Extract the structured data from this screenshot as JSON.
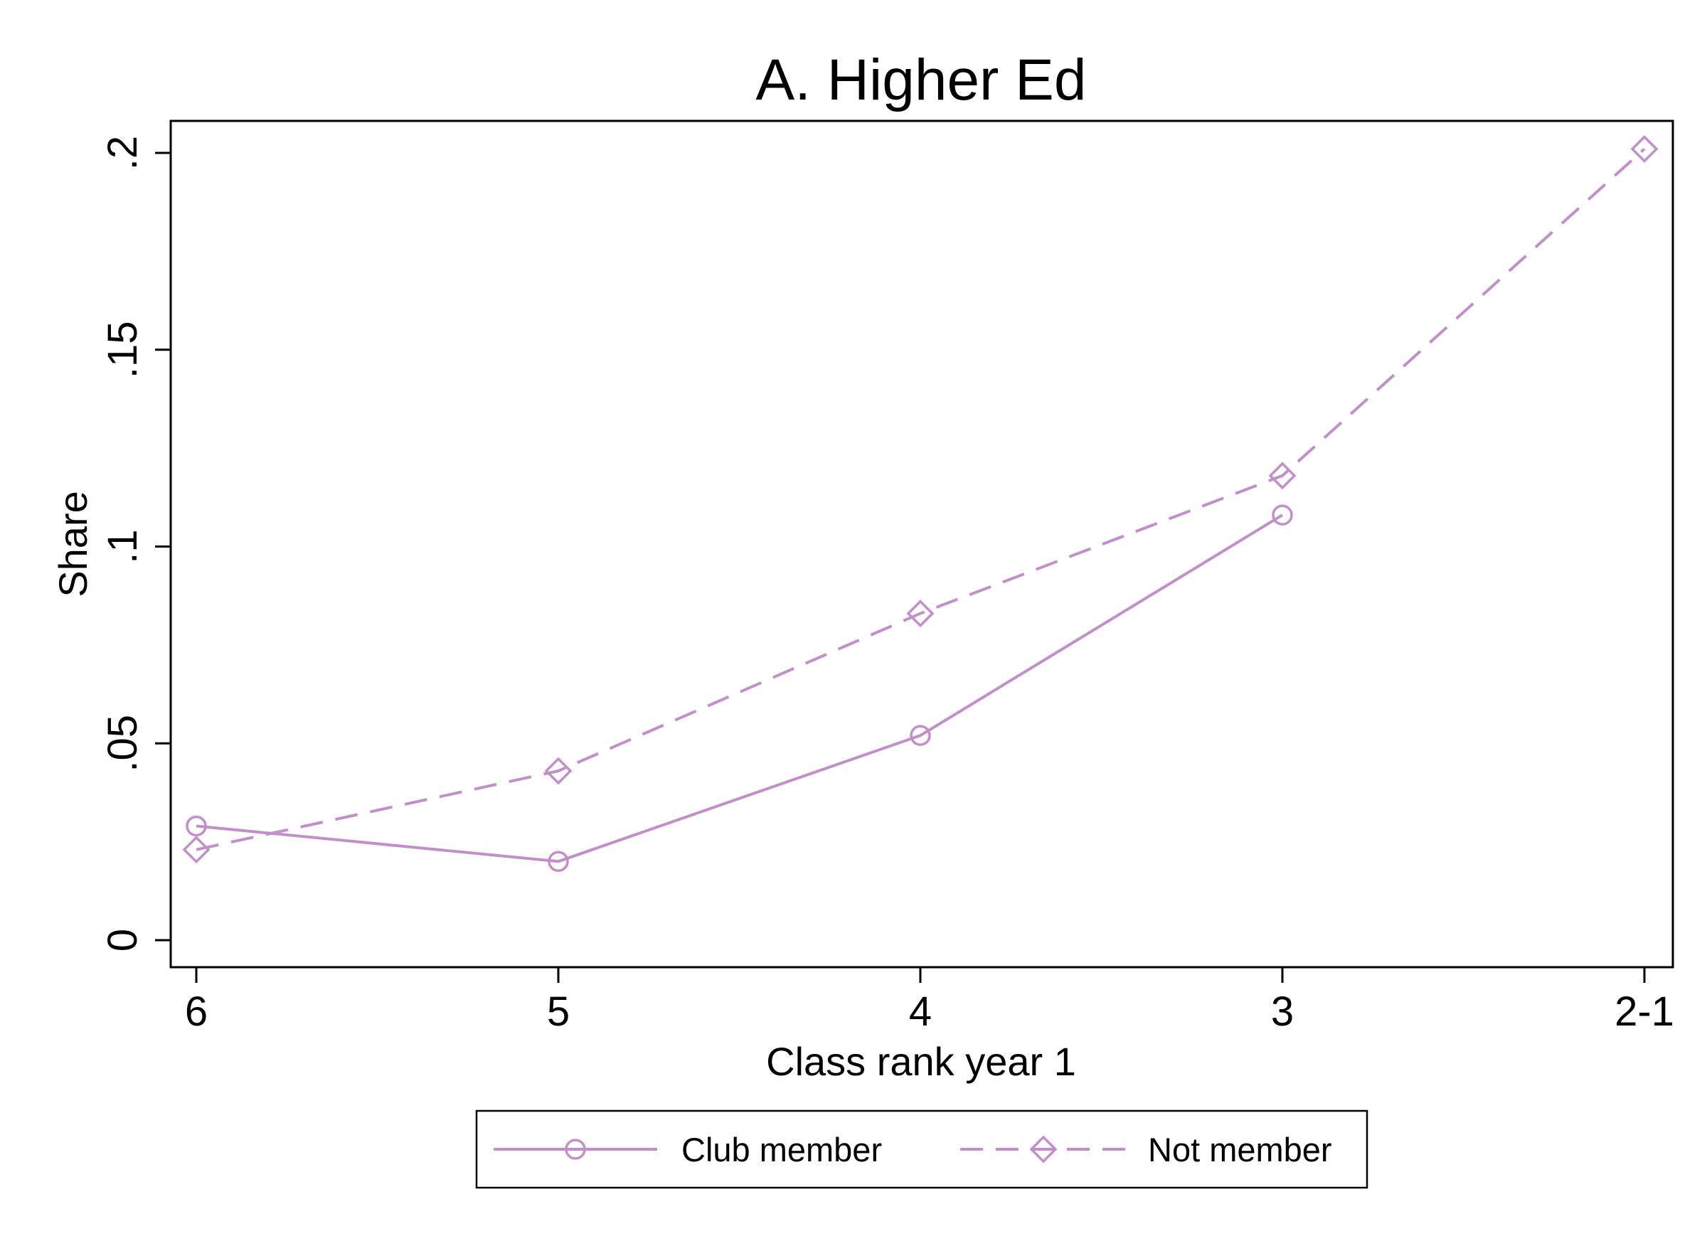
{
  "chart_data": {
    "type": "line",
    "title": "A. Higher Ed",
    "xlabel": "Class rank year 1",
    "ylabel": "Share",
    "categories": [
      "6",
      "5",
      "4",
      "3",
      "2-1"
    ],
    "ylim": [
      0,
      0.2
    ],
    "yticks": [
      {
        "value": 0,
        "label": "0"
      },
      {
        "value": 0.05,
        "label": ".05"
      },
      {
        "value": 0.1,
        "label": ".1"
      },
      {
        "value": 0.15,
        "label": ".15"
      },
      {
        "value": 0.2,
        "label": ".2"
      }
    ],
    "grid": false,
    "legend_position": "bottom",
    "series": [
      {
        "name": "Club member",
        "values": [
          0.029,
          0.02,
          0.052,
          0.108,
          null
        ],
        "marker": "circle",
        "line": "solid",
        "color": "#c28fcb"
      },
      {
        "name": "Not member",
        "values": [
          0.023,
          0.043,
          0.083,
          0.118,
          0.201
        ],
        "marker": "diamond",
        "line": "dashed",
        "color": "#c28fcb"
      }
    ]
  }
}
